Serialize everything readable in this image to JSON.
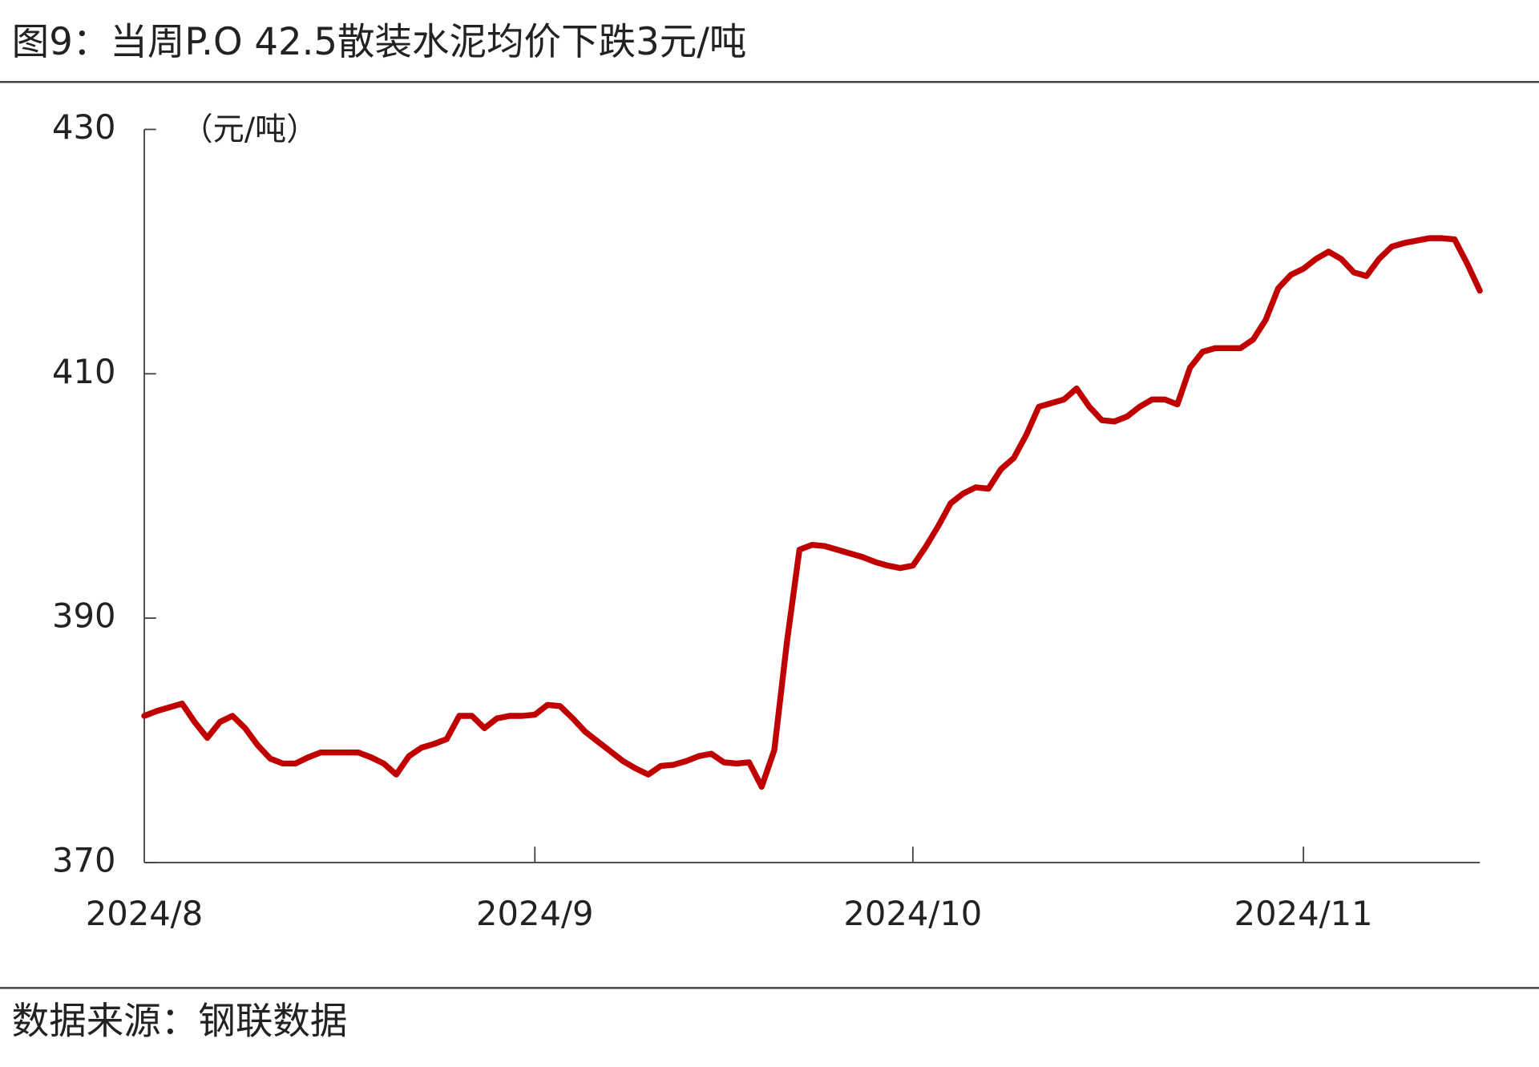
{
  "chart_data": {
    "type": "line",
    "title": "图9：当周P.O 42.5散装水泥均价下跌3元/吨",
    "y_label": "（元/吨）",
    "source": "数据来源：钢联数据",
    "color": "#c00000",
    "categories": [
      "2024/8",
      null,
      null,
      null,
      null,
      null,
      null,
      null,
      null,
      null,
      null,
      null,
      null,
      null,
      null,
      null,
      null,
      null,
      null,
      null,
      null,
      null,
      null,
      null,
      null,
      null,
      null,
      null,
      null,
      null,
      null,
      "2024/9",
      null,
      null,
      null,
      null,
      null,
      null,
      null,
      null,
      null,
      null,
      null,
      null,
      null,
      null,
      null,
      null,
      null,
      null,
      null,
      null,
      null,
      null,
      null,
      null,
      null,
      null,
      null,
      null,
      null,
      "2024/10",
      null,
      null,
      null,
      null,
      null,
      null,
      null,
      null,
      null,
      null,
      null,
      null,
      null,
      null,
      null,
      null,
      null,
      null,
      null,
      null,
      null,
      null,
      null,
      null,
      null,
      null,
      null,
      null,
      null,
      null,
      "2024/11",
      null,
      null,
      null,
      null,
      null,
      null,
      null,
      null,
      null,
      null,
      null,
      null,
      null,
      null
    ],
    "values": [
      382.0,
      382.4,
      382.7,
      383.0,
      381.5,
      380.2,
      381.5,
      382.0,
      381.0,
      379.6,
      378.5,
      378.1,
      378.1,
      378.6,
      379.0,
      379.0,
      379.0,
      379.0,
      378.6,
      378.1,
      377.2,
      378.7,
      379.4,
      379.7,
      380.1,
      382.0,
      382.0,
      381.0,
      381.8,
      382.0,
      382.0,
      382.1,
      382.9,
      382.8,
      381.8,
      380.7,
      379.9,
      379.1,
      378.3,
      377.7,
      377.2,
      377.9,
      378.0,
      378.3,
      378.7,
      378.9,
      378.2,
      378.1,
      378.2,
      376.2,
      379.2,
      388.0,
      395.6,
      396.0,
      395.9,
      395.6,
      395.3,
      395.0,
      394.6,
      394.3,
      394.1,
      394.3,
      395.8,
      397.5,
      399.4,
      400.2,
      400.7,
      400.6,
      402.2,
      403.1,
      405.0,
      407.3,
      407.6,
      407.9,
      408.8,
      407.3,
      406.2,
      406.1,
      406.5,
      407.3,
      407.9,
      407.9,
      407.5,
      410.5,
      411.8,
      412.1,
      412.1,
      412.1,
      412.8,
      414.4,
      417.0,
      418.1,
      418.6,
      419.4,
      420.0,
      419.4,
      418.3,
      418.0,
      419.4,
      420.4,
      420.7,
      420.9,
      421.1,
      421.1,
      421.0,
      419.0,
      416.8
    ],
    "ylim": [
      370,
      430
    ],
    "yticks": [
      370,
      390,
      410,
      430
    ]
  }
}
